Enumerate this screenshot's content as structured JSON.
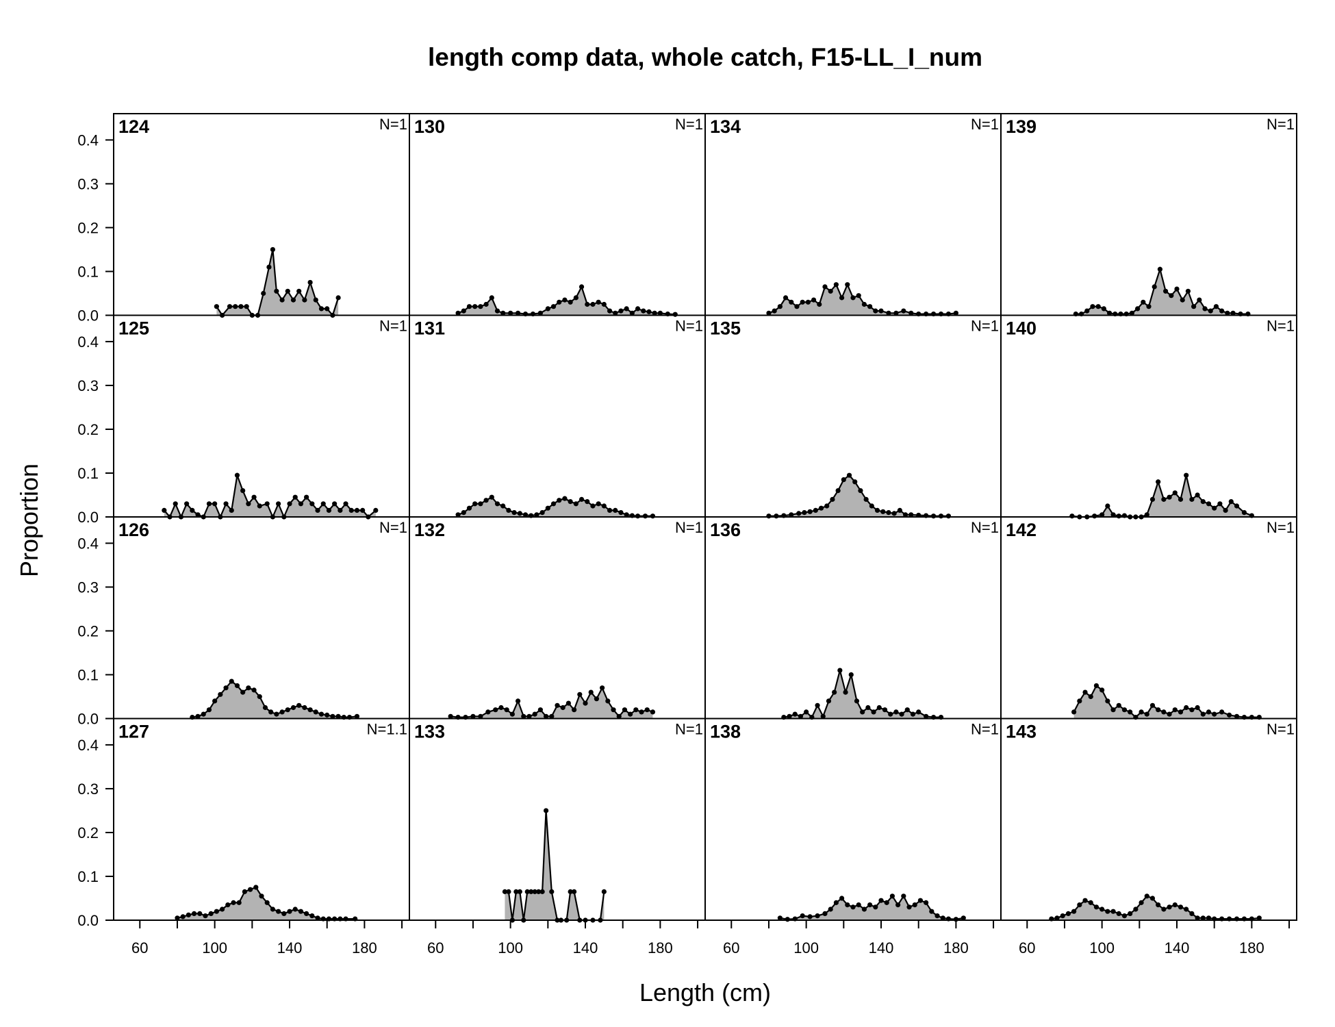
{
  "chart_data": {
    "type": "area",
    "title": "length comp data, whole catch, F15-LL_I_num",
    "xlabel": "Length (cm)",
    "ylabel": "Proportion",
    "xlim": [
      46,
      204
    ],
    "ylim": [
      0,
      0.46
    ],
    "x_ticks": [
      60,
      100,
      140,
      180
    ],
    "y_ticks": [
      "0.0",
      "0.1",
      "0.2",
      "0.3",
      "0.4"
    ],
    "fill_color": "#b3b3b3",
    "line_color": "#000000",
    "grid": false,
    "layout": "4x4",
    "panels": [
      {
        "label": "124",
        "n": "N=1",
        "x": [
          101,
          104,
          108,
          111,
          114,
          117,
          120,
          123,
          126,
          129,
          131,
          133,
          136,
          139,
          142,
          145,
          148,
          151,
          154,
          157,
          160,
          163,
          166
        ],
        "y": [
          0.02,
          0,
          0.02,
          0.02,
          0.02,
          0.02,
          0,
          0,
          0.05,
          0.11,
          0.15,
          0.055,
          0.035,
          0.055,
          0.035,
          0.055,
          0.035,
          0.075,
          0.035,
          0.015,
          0.015,
          0,
          0.04
        ]
      },
      {
        "label": "130",
        "n": "N=1",
        "x": [
          72,
          75,
          78,
          81,
          84,
          87,
          90,
          93,
          96,
          100,
          104,
          108,
          112,
          116,
          120,
          123,
          126,
          129,
          132,
          135,
          138,
          141,
          144,
          147,
          150,
          153,
          156,
          159,
          162,
          165,
          168,
          171,
          174,
          177,
          180,
          184,
          188
        ],
        "y": [
          0.005,
          0.01,
          0.02,
          0.02,
          0.02,
          0.025,
          0.04,
          0.01,
          0.005,
          0.005,
          0.005,
          0.003,
          0.003,
          0.005,
          0.015,
          0.02,
          0.03,
          0.035,
          0.03,
          0.04,
          0.065,
          0.025,
          0.025,
          0.03,
          0.025,
          0.01,
          0.005,
          0.01,
          0.015,
          0.005,
          0.015,
          0.01,
          0.008,
          0.005,
          0.005,
          0.003,
          0.002
        ]
      },
      {
        "label": "134",
        "n": "N=1",
        "x": [
          80,
          83,
          86,
          89,
          92,
          95,
          98,
          101,
          104,
          107,
          110,
          113,
          116,
          119,
          122,
          125,
          128,
          131,
          134,
          137,
          140,
          144,
          148,
          152,
          156,
          160,
          164,
          168,
          172,
          176,
          180
        ],
        "y": [
          0.005,
          0.01,
          0.02,
          0.04,
          0.03,
          0.02,
          0.03,
          0.03,
          0.035,
          0.025,
          0.065,
          0.055,
          0.07,
          0.04,
          0.07,
          0.04,
          0.045,
          0.025,
          0.02,
          0.01,
          0.01,
          0.005,
          0.005,
          0.01,
          0.005,
          0.003,
          0.003,
          0.003,
          0.003,
          0.003,
          0.005
        ]
      },
      {
        "label": "139",
        "n": "N=1",
        "x": [
          86,
          89,
          92,
          95,
          98,
          101,
          104,
          107,
          110,
          113,
          116,
          119,
          122,
          125,
          128,
          131,
          134,
          137,
          140,
          143,
          146,
          149,
          152,
          155,
          158,
          161,
          164,
          167,
          170,
          174,
          178
        ],
        "y": [
          0.003,
          0.003,
          0.01,
          0.02,
          0.02,
          0.015,
          0.005,
          0.003,
          0.003,
          0.003,
          0.005,
          0.015,
          0.03,
          0.02,
          0.065,
          0.105,
          0.055,
          0.045,
          0.06,
          0.035,
          0.055,
          0.02,
          0.035,
          0.015,
          0.01,
          0.02,
          0.01,
          0.005,
          0.005,
          0.003,
          0.003
        ]
      },
      {
        "label": "125",
        "n": "N=1",
        "x": [
          73,
          76,
          79,
          82,
          85,
          88,
          91,
          94,
          97,
          100,
          103,
          106,
          109,
          112,
          115,
          118,
          121,
          124,
          128,
          131,
          134,
          137,
          140,
          143,
          146,
          149,
          152,
          155,
          158,
          161,
          164,
          167,
          170,
          173,
          176,
          179,
          182,
          186
        ],
        "y": [
          0.015,
          0,
          0.03,
          0,
          0.03,
          0.015,
          0.005,
          0,
          0.03,
          0.03,
          0,
          0.03,
          0.015,
          0.095,
          0.06,
          0.03,
          0.045,
          0.025,
          0.03,
          0,
          0.03,
          0,
          0.03,
          0.045,
          0.03,
          0.045,
          0.03,
          0.015,
          0.03,
          0.015,
          0.03,
          0.015,
          0.03,
          0.015,
          0.015,
          0.015,
          0,
          0.015
        ]
      },
      {
        "label": "131",
        "n": "N=1",
        "x": [
          72,
          75,
          78,
          81,
          84,
          87,
          90,
          93,
          96,
          99,
          102,
          105,
          108,
          111,
          114,
          117,
          120,
          123,
          126,
          129,
          132,
          135,
          138,
          141,
          144,
          147,
          150,
          153,
          156,
          159,
          162,
          165,
          168,
          172,
          176
        ],
        "y": [
          0.005,
          0.01,
          0.02,
          0.03,
          0.03,
          0.038,
          0.045,
          0.03,
          0.025,
          0.015,
          0.01,
          0.008,
          0.005,
          0.003,
          0.005,
          0.01,
          0.02,
          0.03,
          0.038,
          0.042,
          0.035,
          0.03,
          0.04,
          0.035,
          0.025,
          0.03,
          0.025,
          0.015,
          0.015,
          0.01,
          0.005,
          0.003,
          0.002,
          0.002,
          0.002
        ]
      },
      {
        "label": "135",
        "n": "N=1",
        "x": [
          80,
          84,
          88,
          92,
          96,
          99,
          102,
          105,
          108,
          111,
          114,
          117,
          120,
          123,
          126,
          129,
          132,
          135,
          138,
          141,
          144,
          147,
          150,
          153,
          156,
          160,
          164,
          168,
          172,
          176
        ],
        "y": [
          0.002,
          0.002,
          0.003,
          0.005,
          0.008,
          0.01,
          0.012,
          0.015,
          0.02,
          0.025,
          0.04,
          0.06,
          0.085,
          0.095,
          0.08,
          0.06,
          0.04,
          0.025,
          0.015,
          0.012,
          0.01,
          0.008,
          0.015,
          0.005,
          0.005,
          0.004,
          0.003,
          0.002,
          0.002,
          0.002
        ]
      },
      {
        "label": "140",
        "n": "N=1",
        "x": [
          84,
          88,
          92,
          96,
          100,
          103,
          106,
          109,
          112,
          115,
          118,
          121,
          124,
          127,
          130,
          133,
          136,
          139,
          142,
          145,
          148,
          151,
          154,
          157,
          160,
          163,
          166,
          169,
          172,
          176,
          180
        ],
        "y": [
          0.002,
          0,
          0,
          0.002,
          0.005,
          0.025,
          0.005,
          0.002,
          0.003,
          0,
          0,
          0,
          0.005,
          0.04,
          0.08,
          0.04,
          0.045,
          0.055,
          0.04,
          0.095,
          0.04,
          0.05,
          0.035,
          0.03,
          0.02,
          0.03,
          0.015,
          0.035,
          0.025,
          0.01,
          0.003
        ]
      },
      {
        "label": "126",
        "n": "N=1",
        "x": [
          88,
          91,
          94,
          97,
          100,
          103,
          106,
          109,
          112,
          115,
          118,
          121,
          124,
          127,
          130,
          133,
          136,
          139,
          142,
          145,
          148,
          151,
          154,
          157,
          160,
          163,
          166,
          169,
          172,
          176
        ],
        "y": [
          0.003,
          0.005,
          0.01,
          0.02,
          0.04,
          0.055,
          0.07,
          0.085,
          0.075,
          0.06,
          0.07,
          0.065,
          0.05,
          0.025,
          0.015,
          0.01,
          0.015,
          0.02,
          0.025,
          0.03,
          0.025,
          0.02,
          0.015,
          0.01,
          0.008,
          0.005,
          0.005,
          0.003,
          0.003,
          0.005
        ]
      },
      {
        "label": "132",
        "n": "N=1",
        "x": [
          68,
          72,
          76,
          80,
          84,
          88,
          92,
          95,
          98,
          101,
          104,
          107,
          110,
          113,
          116,
          119,
          122,
          125,
          128,
          131,
          134,
          137,
          140,
          143,
          146,
          149,
          152,
          155,
          158,
          161,
          164,
          167,
          170,
          173,
          176
        ],
        "y": [
          0.005,
          0.003,
          0.003,
          0.005,
          0.005,
          0.015,
          0.02,
          0.025,
          0.02,
          0.01,
          0.04,
          0.005,
          0.005,
          0.01,
          0.02,
          0.005,
          0.005,
          0.03,
          0.025,
          0.035,
          0.02,
          0.055,
          0.035,
          0.06,
          0.045,
          0.07,
          0.04,
          0.02,
          0.005,
          0.02,
          0.01,
          0.02,
          0.015,
          0.02,
          0.015
        ]
      },
      {
        "label": "136",
        "n": "N=1",
        "x": [
          88,
          91,
          94,
          97,
          100,
          103,
          106,
          109,
          112,
          115,
          118,
          121,
          124,
          127,
          130,
          133,
          136,
          139,
          142,
          145,
          148,
          151,
          154,
          157,
          160,
          164,
          168,
          172
        ],
        "y": [
          0.003,
          0.005,
          0.01,
          0.005,
          0.015,
          0.003,
          0.03,
          0.005,
          0.04,
          0.06,
          0.11,
          0.06,
          0.1,
          0.04,
          0.015,
          0.025,
          0.015,
          0.025,
          0.02,
          0.01,
          0.015,
          0.01,
          0.02,
          0.01,
          0.015,
          0.005,
          0.003,
          0.003
        ]
      },
      {
        "label": "142",
        "n": "N=1",
        "x": [
          85,
          88,
          91,
          94,
          97,
          100,
          103,
          106,
          109,
          112,
          115,
          118,
          121,
          124,
          127,
          130,
          133,
          136,
          139,
          142,
          145,
          148,
          151,
          154,
          157,
          160,
          164,
          168,
          172,
          176,
          180,
          184
        ],
        "y": [
          0.015,
          0.04,
          0.06,
          0.05,
          0.075,
          0.065,
          0.04,
          0.02,
          0.03,
          0.02,
          0.015,
          0.003,
          0.015,
          0.01,
          0.03,
          0.02,
          0.015,
          0.01,
          0.02,
          0.015,
          0.025,
          0.02,
          0.025,
          0.01,
          0.015,
          0.01,
          0.015,
          0.008,
          0.005,
          0.003,
          0.003,
          0.003
        ]
      },
      {
        "label": "127",
        "n": "N=1.1",
        "x": [
          80,
          83,
          86,
          89,
          92,
          95,
          98,
          101,
          104,
          107,
          110,
          113,
          116,
          119,
          122,
          125,
          128,
          131,
          134,
          137,
          140,
          143,
          146,
          149,
          152,
          155,
          158,
          161,
          164,
          167,
          170,
          175
        ],
        "y": [
          0.005,
          0.008,
          0.012,
          0.015,
          0.015,
          0.01,
          0.015,
          0.02,
          0.025,
          0.035,
          0.04,
          0.04,
          0.065,
          0.07,
          0.075,
          0.055,
          0.04,
          0.025,
          0.02,
          0.015,
          0.02,
          0.025,
          0.02,
          0.015,
          0.01,
          0.005,
          0.003,
          0.003,
          0.003,
          0.003,
          0.003,
          0.003
        ]
      },
      {
        "label": "133",
        "n": "N=1",
        "x": [
          97,
          99,
          101,
          103,
          105,
          107,
          109,
          111,
          113,
          115,
          117,
          119,
          122,
          125,
          127,
          130,
          132,
          134,
          137,
          140,
          144,
          148,
          150
        ],
        "y": [
          0.065,
          0.065,
          0,
          0.065,
          0.065,
          0,
          0.065,
          0.065,
          0.065,
          0.065,
          0.065,
          0.25,
          0.065,
          0,
          0,
          0,
          0.065,
          0.065,
          0,
          0,
          0,
          0,
          0.065
        ]
      },
      {
        "label": "138",
        "n": "N=1",
        "x": [
          86,
          90,
          94,
          98,
          102,
          106,
          110,
          113,
          116,
          119,
          122,
          125,
          128,
          131,
          134,
          137,
          140,
          143,
          146,
          149,
          152,
          155,
          158,
          161,
          164,
          167,
          170,
          173,
          176,
          180,
          184
        ],
        "y": [
          0.005,
          0.002,
          0.003,
          0.01,
          0.008,
          0.01,
          0.015,
          0.025,
          0.04,
          0.05,
          0.035,
          0.03,
          0.035,
          0.025,
          0.035,
          0.03,
          0.045,
          0.04,
          0.055,
          0.035,
          0.055,
          0.03,
          0.035,
          0.045,
          0.04,
          0.02,
          0.01,
          0.005,
          0.003,
          0.002,
          0.005
        ]
      },
      {
        "label": "143",
        "n": "N=1",
        "x": [
          73,
          76,
          79,
          82,
          85,
          88,
          91,
          94,
          97,
          100,
          103,
          106,
          109,
          112,
          115,
          118,
          121,
          124,
          127,
          130,
          133,
          136,
          139,
          142,
          145,
          148,
          151,
          154,
          157,
          160,
          164,
          168,
          172,
          176,
          180,
          184
        ],
        "y": [
          0.003,
          0.005,
          0.01,
          0.015,
          0.02,
          0.035,
          0.045,
          0.04,
          0.03,
          0.025,
          0.02,
          0.02,
          0.015,
          0.01,
          0.015,
          0.025,
          0.04,
          0.055,
          0.05,
          0.035,
          0.025,
          0.03,
          0.035,
          0.03,
          0.025,
          0.015,
          0.005,
          0.005,
          0.005,
          0.003,
          0.003,
          0.003,
          0.003,
          0.003,
          0.003,
          0.005
        ]
      }
    ]
  }
}
